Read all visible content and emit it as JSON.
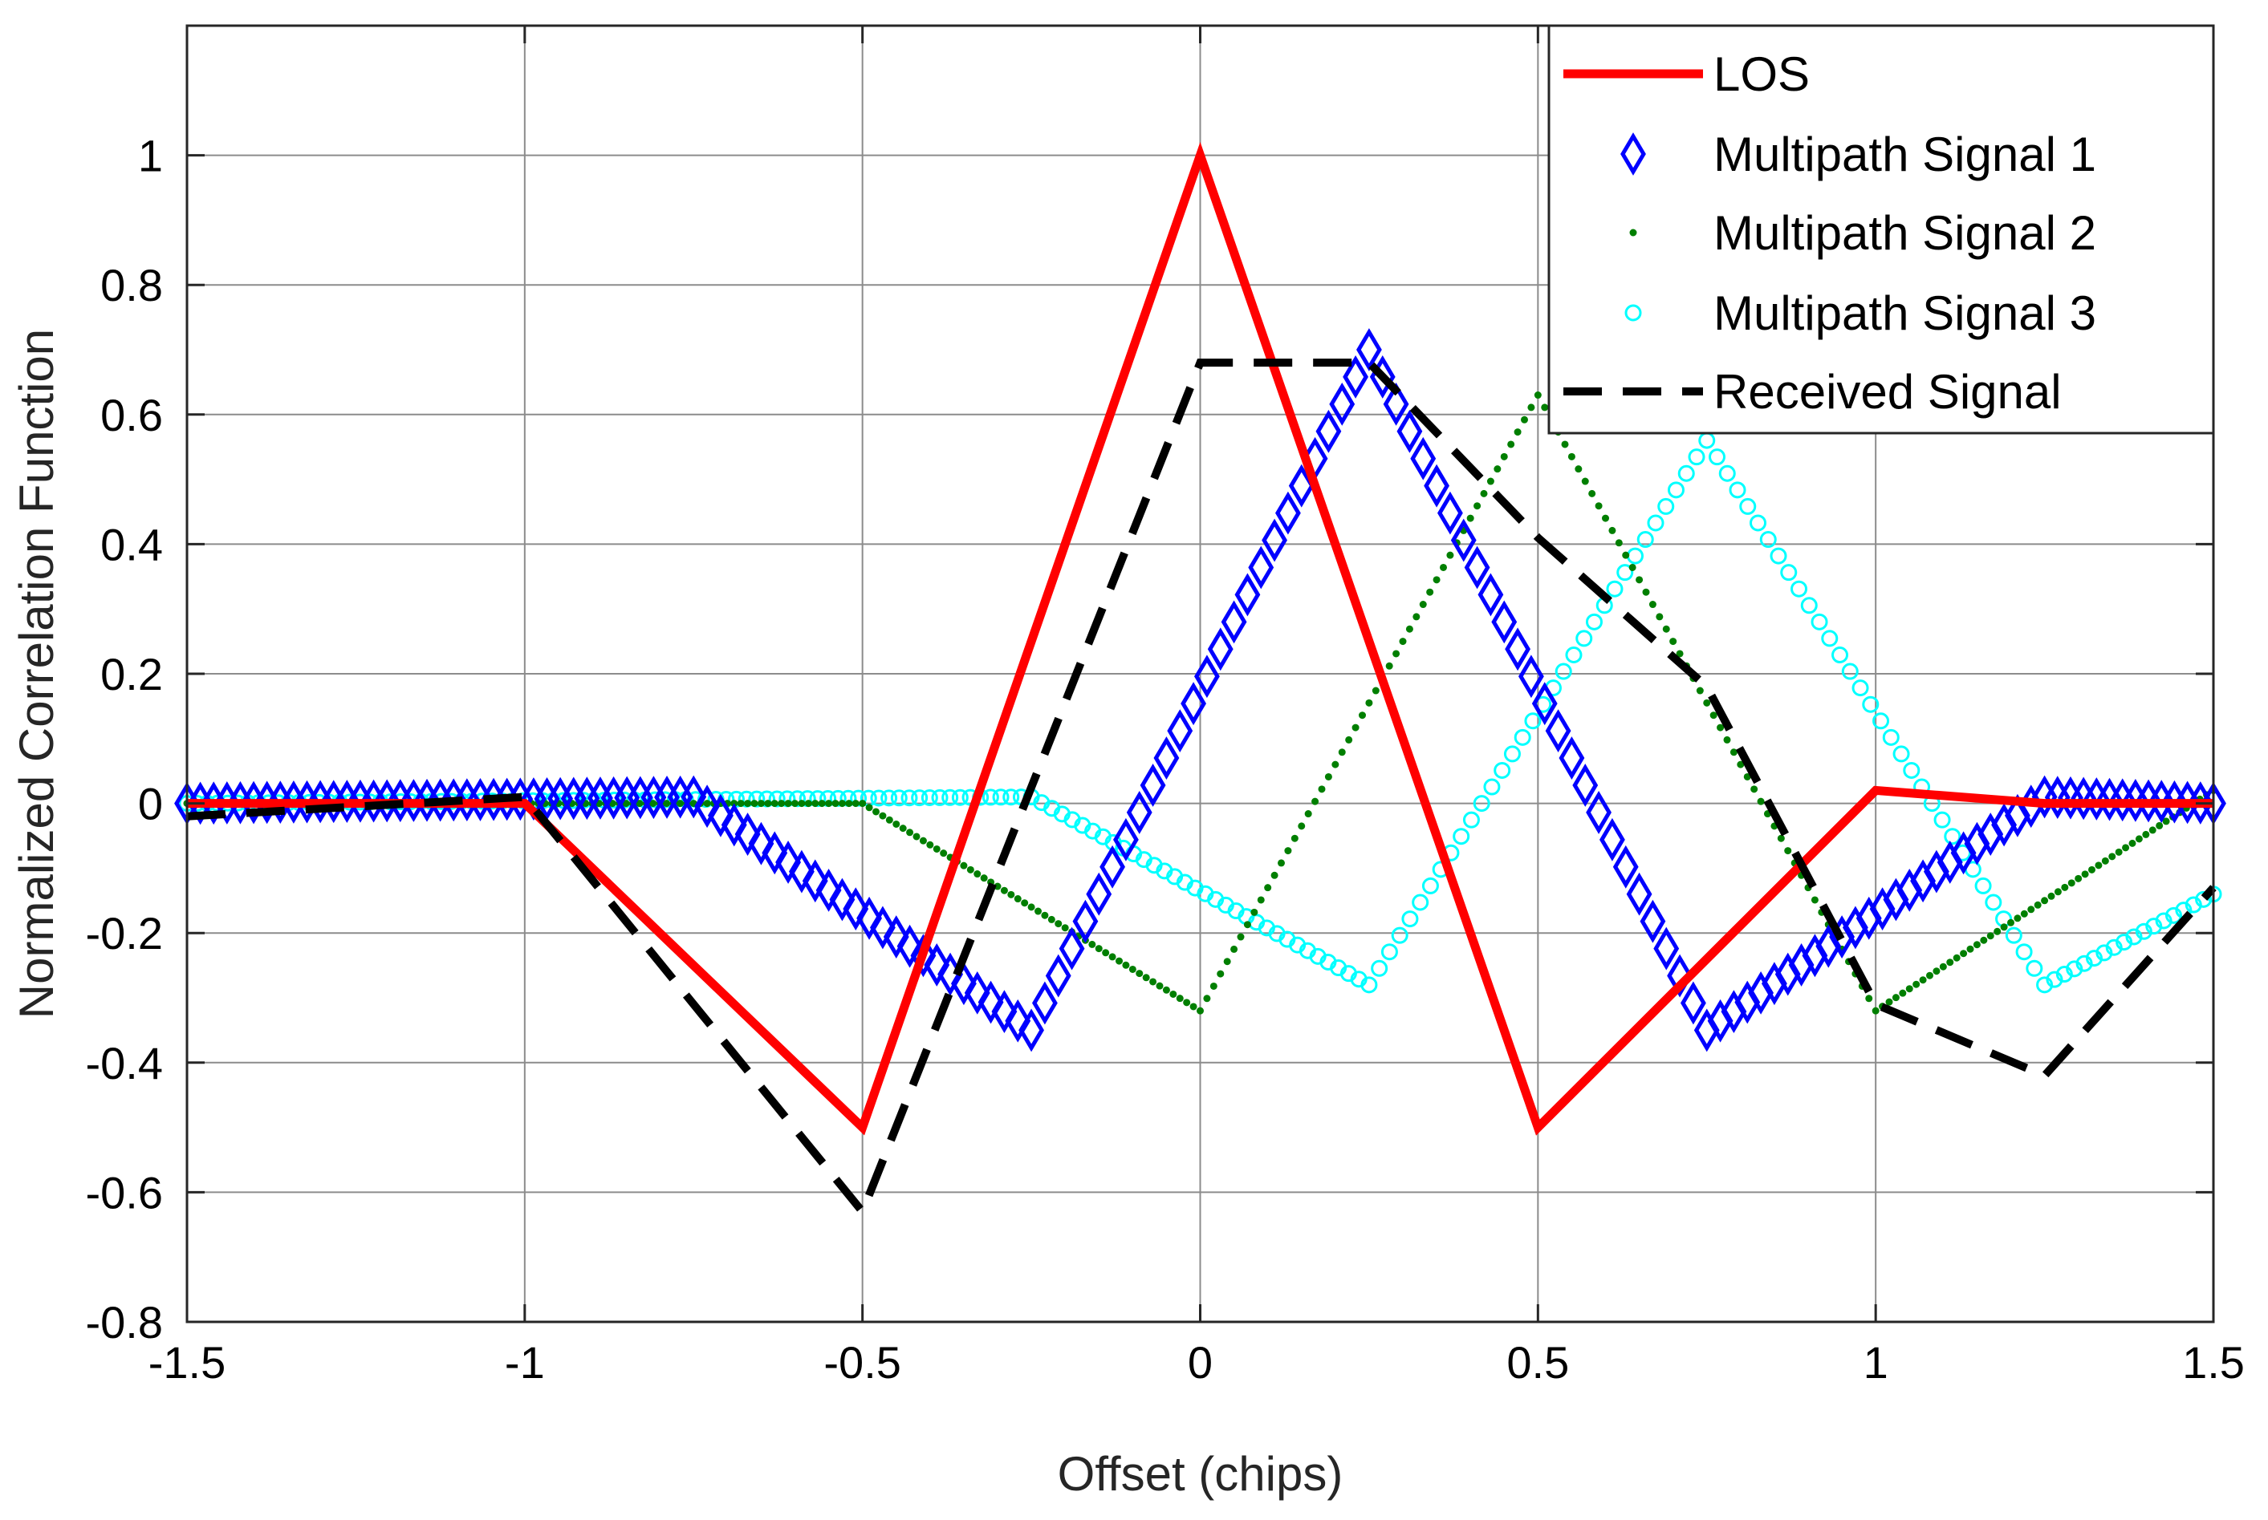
{
  "chart_data": {
    "type": "line",
    "title": "",
    "xlabel": "Offset (chips)",
    "ylabel": "Normalized Correlation Function",
    "xlim": [
      -1.5,
      1.5
    ],
    "ylim": [
      -0.8,
      1.2
    ],
    "xticks": [
      -1.5,
      -1,
      -0.5,
      0,
      0.5,
      1,
      1.5
    ],
    "xtick_labels": [
      "-1.5",
      "-1",
      "-0.5",
      "0",
      "0.5",
      "1",
      "1.5"
    ],
    "yticks": [
      -0.8,
      -0.6,
      -0.4,
      -0.2,
      0,
      0.2,
      0.4,
      0.6,
      0.8,
      1
    ],
    "ytick_labels": [
      "-0.8",
      "-0.6",
      "-0.4",
      "-0.2",
      "0",
      "0.2",
      "0.4",
      "0.6",
      "0.8",
      "1"
    ],
    "grid": true,
    "legend_position": "top-right",
    "series": [
      {
        "name": "LOS",
        "style": "solid",
        "marker": "none",
        "color": "#ff0000",
        "x": [
          -1.5,
          -1,
          -0.5,
          0,
          0.5,
          1,
          1.25,
          1.5
        ],
        "y": [
          0,
          0,
          -0.5,
          1,
          -0.5,
          0.02,
          0,
          0
        ]
      },
      {
        "name": "Multipath Signal 1",
        "style": "markers",
        "marker": "diamond",
        "color": "#0000ff",
        "x": [
          -1.5,
          -0.75,
          -0.25,
          0.25,
          0.75,
          1.25,
          1.5
        ],
        "y": [
          0,
          0.01,
          -0.35,
          0.7,
          -0.35,
          0.01,
          0
        ]
      },
      {
        "name": "Multipath Signal 2",
        "style": "markers",
        "marker": "dot",
        "color": "#007f00",
        "x": [
          -1.5,
          -0.5,
          0,
          0.5,
          1,
          1.5
        ],
        "y": [
          0,
          0,
          -0.32,
          0.63,
          -0.32,
          0.02
        ]
      },
      {
        "name": "Multipath Signal 3",
        "style": "markers",
        "marker": "circle",
        "color": "#00ffff",
        "x": [
          -1.5,
          -0.25,
          0.25,
          0.75,
          1.25,
          1.5
        ],
        "y": [
          0,
          0.01,
          -0.28,
          0.56,
          -0.28,
          -0.14
        ]
      },
      {
        "name": "Received Signal",
        "style": "dashed",
        "marker": "none",
        "color": "#000000",
        "x": [
          -1.5,
          -1,
          -0.5,
          0,
          0.25,
          0.5,
          0.75,
          1,
          1.25,
          1.5
        ],
        "y": [
          -0.02,
          0.01,
          -0.63,
          0.68,
          0.68,
          0.41,
          0.18,
          -0.31,
          -0.42,
          -0.13
        ]
      }
    ]
  }
}
